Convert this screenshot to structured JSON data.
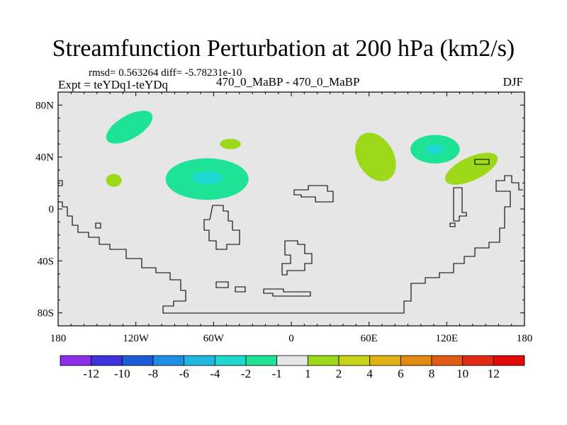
{
  "header": {
    "title": "Streamfunction Perturbation at 200 hPa (km2/s)",
    "stats": "rmsd= 0.563264 diff= -5.78231e-10",
    "left_label": "Expt = teYDq1-teYDq",
    "center_label": "470_0_MaBP - 470_0_MaBP",
    "right_label": "DJF"
  },
  "chart_data": {
    "type": "heatmap",
    "title": "Streamfunction Perturbation at 200 hPa (km2/s)",
    "units": "km2/s",
    "x_ticks": [
      {
        "value": -180,
        "label": "180"
      },
      {
        "value": -120,
        "label": "120W"
      },
      {
        "value": -60,
        "label": "60W"
      },
      {
        "value": 0,
        "label": "0"
      },
      {
        "value": 60,
        "label": "60E"
      },
      {
        "value": 120,
        "label": "120E"
      },
      {
        "value": 180,
        "label": "180"
      }
    ],
    "y_ticks": [
      {
        "value": 80,
        "label": "80N"
      },
      {
        "value": 40,
        "label": "40N"
      },
      {
        "value": 0,
        "label": "0"
      },
      {
        "value": -40,
        "label": "40S"
      },
      {
        "value": -80,
        "label": "80S"
      }
    ],
    "xlim": [
      -180,
      180
    ],
    "ylim": [
      -90,
      90
    ],
    "background_color": "#e6e6e6",
    "colorbar": {
      "labels": [
        "-12",
        "-10",
        "-8",
        "-6",
        "-4",
        "-2",
        "-1",
        "1",
        "2",
        "4",
        "6",
        "8",
        "10",
        "12"
      ],
      "colors": [
        "#8a2ee8",
        "#3b32dc",
        "#1e5ad8",
        "#1e8fe0",
        "#1eb8e0",
        "#1ed8d0",
        "#1ee296",
        "#e6e6e6",
        "#9ed81a",
        "#c8d21a",
        "#e0b014",
        "#e08a14",
        "#e05a14",
        "#e02a14",
        "#e00a0a"
      ]
    },
    "anomalies": [
      {
        "lon": -125,
        "lat": 63,
        "rx": 20,
        "ry": 9,
        "rotate": -30,
        "value": -2,
        "color": "#1ee296"
      },
      {
        "lon": -137,
        "lat": 22,
        "rx": 6,
        "ry": 5,
        "rotate": 0,
        "value": 2,
        "color": "#9ed81a"
      },
      {
        "lon": -65,
        "lat": 23,
        "rx": 32,
        "ry": 16,
        "rotate": 0,
        "value": -2,
        "color": "#1ee296"
      },
      {
        "lon": -65,
        "lat": 24,
        "rx": 12,
        "ry": 5,
        "rotate": 0,
        "value": -4,
        "color": "#1ed8d0"
      },
      {
        "lon": -47,
        "lat": 50,
        "rx": 8,
        "ry": 4,
        "rotate": 0,
        "value": 2,
        "color": "#9ed81a"
      },
      {
        "lon": 65,
        "lat": 40,
        "rx": 14,
        "ry": 20,
        "rotate": -30,
        "value": 2,
        "color": "#9ed81a"
      },
      {
        "lon": 111,
        "lat": 46,
        "rx": 19,
        "ry": 11,
        "rotate": 0,
        "value": -2,
        "color": "#1ee296"
      },
      {
        "lon": 111,
        "lat": 46,
        "rx": 7,
        "ry": 4,
        "rotate": 0,
        "value": -4,
        "color": "#1ed8d0"
      },
      {
        "lon": 139,
        "lat": 31,
        "rx": 22,
        "ry": 9,
        "rotate": -25,
        "value": 2,
        "color": "#9ed81a"
      }
    ]
  }
}
